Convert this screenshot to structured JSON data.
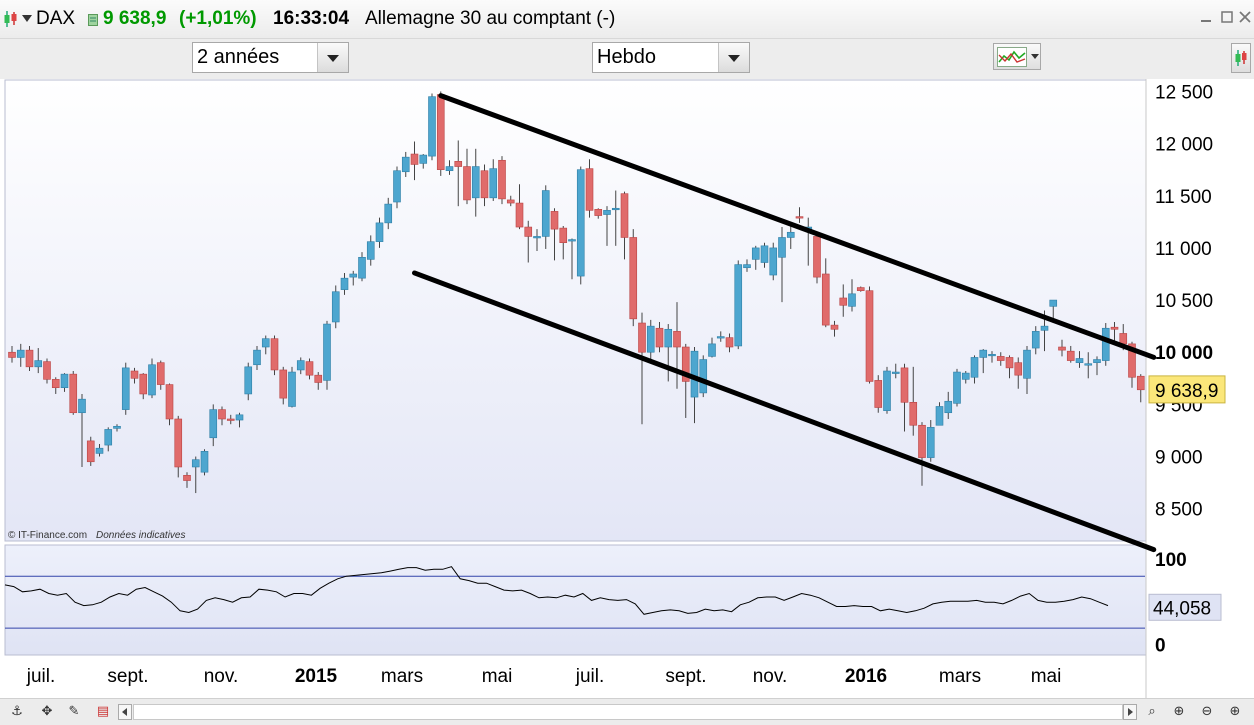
{
  "header": {
    "symbol": "DAX",
    "price": "9 638,9",
    "change": "(+1,01%)",
    "time": "16:33:04",
    "name": "Allemagne 30 au comptant (-)",
    "colors": {
      "up": "#009900",
      "text": "#000000"
    }
  },
  "toolbar": {
    "period": "2 années",
    "interval": "Hebdo"
  },
  "credits": {
    "source": "© IT-Finance.com",
    "note": "Données indicatives"
  },
  "chart_data": {
    "type": "candlestick",
    "x_labels": [
      "juil.",
      "sept.",
      "nov.",
      "2015",
      "mars",
      "mai",
      "juil.",
      "sept.",
      "nov.",
      "2016",
      "mars",
      "mai"
    ],
    "y_ticks": [
      "12 500",
      "12 000",
      "11 500",
      "11 000",
      "10 500",
      "10 000",
      "9 500",
      "9 000",
      "8 500"
    ],
    "ylim": [
      8200,
      12600
    ],
    "last_price_label": "9 638,9",
    "last_price": 9638.9,
    "colors": {
      "up": "#4da6cf",
      "down": "#e06b6b",
      "wick": "#444444"
    },
    "candles": [
      [
        10000,
        9950,
        9900,
        10060
      ],
      [
        9950,
        10020,
        9860,
        10080
      ],
      [
        10020,
        9860,
        9820,
        10060
      ],
      [
        9860,
        9920,
        9800,
        10040
      ],
      [
        9910,
        9740,
        9700,
        9940
      ],
      [
        9740,
        9660,
        9600,
        9760
      ],
      [
        9660,
        9790,
        9620,
        9800
      ],
      [
        9790,
        9420,
        9400,
        9820
      ],
      [
        9420,
        9550,
        8900,
        9600
      ],
      [
        9150,
        8950,
        8910,
        9190
      ],
      [
        9030,
        9080,
        9000,
        9120
      ],
      [
        9110,
        9260,
        9050,
        9280
      ],
      [
        9270,
        9290,
        9240,
        9310
      ],
      [
        9450,
        9850,
        9400,
        9900
      ],
      [
        9820,
        9750,
        9700,
        9850
      ],
      [
        9790,
        9600,
        9550,
        9800
      ],
      [
        9590,
        9880,
        9560,
        9940
      ],
      [
        9900,
        9690,
        9640,
        9920
      ],
      [
        9690,
        9360,
        9300,
        9700
      ],
      [
        9360,
        8900,
        8800,
        9390
      ],
      [
        8820,
        8770,
        8700,
        8850
      ],
      [
        8900,
        8970,
        8650,
        9000
      ],
      [
        8850,
        9050,
        8820,
        9070
      ],
      [
        9180,
        9450,
        9100,
        9500
      ],
      [
        9450,
        9360,
        9300,
        9480
      ],
      [
        9360,
        9350,
        9310,
        9400
      ],
      [
        9350,
        9400,
        9280,
        9420
      ],
      [
        9600,
        9860,
        9540,
        9900
      ],
      [
        9880,
        10020,
        9830,
        10060
      ],
      [
        10050,
        10130,
        9980,
        10160
      ],
      [
        10130,
        9830,
        9780,
        10160
      ],
      [
        9830,
        9560,
        9500,
        9860
      ],
      [
        9480,
        9810,
        9470,
        9860
      ],
      [
        9830,
        9920,
        9790,
        9950
      ],
      [
        9910,
        9780,
        9740,
        9940
      ],
      [
        9780,
        9710,
        9640,
        9810
      ],
      [
        9730,
        10270,
        9640,
        10300
      ],
      [
        10290,
        10580,
        10230,
        10640
      ],
      [
        10600,
        10710,
        10550,
        10760
      ],
      [
        10720,
        10750,
        10640,
        10780
      ],
      [
        10710,
        10910,
        10680,
        10960
      ],
      [
        10890,
        11060,
        10830,
        11120
      ],
      [
        11060,
        11240,
        11000,
        11290
      ],
      [
        11240,
        11420,
        11180,
        11480
      ],
      [
        11440,
        11740,
        11380,
        11780
      ],
      [
        11730,
        11870,
        11680,
        11920
      ],
      [
        11900,
        11800,
        11650,
        12020
      ],
      [
        11810,
        11890,
        11760,
        11900
      ],
      [
        11880,
        12450,
        11840,
        12480
      ],
      [
        12470,
        11750,
        11690,
        12500
      ],
      [
        11740,
        11780,
        11700,
        11840
      ],
      [
        11830,
        11780,
        11400,
        12030
      ],
      [
        11780,
        11460,
        11420,
        11950
      ],
      [
        11480,
        11780,
        11300,
        11950
      ],
      [
        11740,
        11480,
        11400,
        11800
      ],
      [
        11480,
        11760,
        11450,
        11850
      ],
      [
        11840,
        11470,
        11420,
        11880
      ],
      [
        11460,
        11430,
        11400,
        11500
      ],
      [
        11430,
        11200,
        11180,
        11610
      ],
      [
        11200,
        11110,
        10860,
        11260
      ],
      [
        11100,
        11110,
        10970,
        11180
      ],
      [
        11110,
        11550,
        10990,
        11600
      ],
      [
        11350,
        11180,
        10880,
        11380
      ],
      [
        11190,
        11050,
        10890,
        11210
      ],
      [
        11080,
        11080,
        10700,
        11090
      ],
      [
        10730,
        11750,
        10650,
        11780
      ],
      [
        11760,
        11360,
        11290,
        11850
      ],
      [
        11370,
        11310,
        11280,
        11380
      ],
      [
        11320,
        11360,
        11020,
        11400
      ],
      [
        11370,
        11380,
        11020,
        11550
      ],
      [
        11520,
        11100,
        10890,
        11540
      ],
      [
        11100,
        10320,
        10250,
        11180
      ],
      [
        10280,
        10000,
        9310,
        10380
      ],
      [
        10000,
        10250,
        9900,
        10310
      ],
      [
        10230,
        10050,
        10000,
        10290
      ],
      [
        10050,
        10220,
        9720,
        10270
      ],
      [
        10200,
        10050,
        9650,
        10480
      ],
      [
        10050,
        9720,
        9370,
        10080
      ],
      [
        9570,
        10010,
        9320,
        10050
      ],
      [
        9610,
        9930,
        9570,
        9970
      ],
      [
        9960,
        10080,
        9950,
        10140
      ],
      [
        10140,
        10150,
        10100,
        10200
      ],
      [
        10140,
        10050,
        10000,
        10180
      ],
      [
        10060,
        10840,
        10030,
        10880
      ],
      [
        10810,
        10840,
        10770,
        10890
      ],
      [
        10890,
        11000,
        10790,
        11020
      ],
      [
        10860,
        11020,
        10810,
        11050
      ],
      [
        10740,
        11000,
        10690,
        11050
      ],
      [
        10910,
        11100,
        10480,
        11200
      ],
      [
        11100,
        11150,
        10990,
        11250
      ],
      [
        11300,
        11290,
        11240,
        11390
      ],
      [
        11180,
        11200,
        10830,
        11290
      ],
      [
        11110,
        10720,
        10660,
        11150
      ],
      [
        10750,
        10260,
        10240,
        10900
      ],
      [
        10260,
        10220,
        10150,
        10300
      ],
      [
        10520,
        10450,
        10340,
        10650
      ],
      [
        10440,
        10560,
        10390,
        10700
      ],
      [
        10620,
        10590,
        10580,
        10630
      ],
      [
        10590,
        9720,
        9700,
        10630
      ],
      [
        9730,
        9470,
        9420,
        9780
      ],
      [
        9440,
        9820,
        9410,
        9860
      ],
      [
        9810,
        9810,
        9750,
        9890
      ],
      [
        9850,
        9520,
        9240,
        9890
      ],
      [
        9520,
        9300,
        9200,
        9860
      ],
      [
        9300,
        8990,
        8720,
        9330
      ],
      [
        8990,
        9280,
        8950,
        9350
      ],
      [
        9300,
        9480,
        9300,
        9520
      ],
      [
        9420,
        9530,
        9360,
        9620
      ],
      [
        9510,
        9810,
        9480,
        9840
      ],
      [
        9740,
        9800,
        9700,
        9820
      ],
      [
        9760,
        9950,
        9700,
        9970
      ],
      [
        9950,
        10020,
        9800,
        10030
      ],
      [
        9980,
        9980,
        9900,
        10010
      ],
      [
        9960,
        9920,
        9870,
        10000
      ],
      [
        9950,
        9850,
        9750,
        9970
      ],
      [
        9900,
        9780,
        9650,
        9950
      ],
      [
        9750,
        10020,
        9600,
        10060
      ],
      [
        10040,
        10200,
        9980,
        10250
      ],
      [
        10210,
        10250,
        10010,
        10400
      ],
      [
        10440,
        10500,
        10280,
        10480
      ],
      [
        10050,
        10020,
        9960,
        10120
      ],
      [
        10010,
        9920,
        9900,
        10060
      ],
      [
        9900,
        9940,
        9850,
        10010
      ],
      [
        9890,
        9890,
        9750,
        10000
      ],
      [
        9900,
        9930,
        9780,
        9960
      ],
      [
        9920,
        10230,
        9870,
        10280
      ],
      [
        10240,
        10220,
        10070,
        10290
      ],
      [
        10180,
        10080,
        10020,
        10270
      ],
      [
        10080,
        9760,
        9660,
        10100
      ],
      [
        9770,
        9640,
        9520,
        9790
      ]
    ],
    "channel_upper": [
      [
        49,
        12460
      ],
      [
        125,
        10120
      ]
    ],
    "channel_lower": [
      [
        46,
        10760
      ],
      [
        125,
        8280
      ]
    ],
    "oscillator": {
      "upper_label": "100",
      "current_label": "44,058",
      "lower_label": "0",
      "current": 44.058,
      "levels": [
        80,
        20
      ],
      "ylim": [
        -10,
        115
      ],
      "colors": {
        "line": "#000000",
        "level": "#3344aa"
      },
      "values": [
        70,
        68,
        62,
        63,
        65,
        60,
        58,
        60,
        50,
        46,
        47,
        50,
        56,
        60,
        58,
        65,
        67,
        62,
        57,
        50,
        40,
        38,
        42,
        52,
        55,
        53,
        50,
        55,
        56,
        65,
        64,
        62,
        56,
        60,
        60,
        58,
        66,
        72,
        77,
        80,
        81,
        82,
        83,
        84,
        86,
        88,
        90,
        90,
        87,
        88,
        88,
        91,
        77,
        75,
        72,
        72,
        68,
        64,
        63,
        64,
        60,
        55,
        56,
        55,
        58,
        56,
        60,
        52,
        55,
        53,
        52,
        53,
        48,
        36,
        38,
        40,
        41,
        40,
        37,
        38,
        42,
        40,
        41,
        39,
        47,
        50,
        55,
        56,
        56,
        52,
        56,
        60,
        58,
        55,
        50,
        45,
        45,
        46,
        45,
        45,
        40,
        42,
        40,
        38,
        40,
        43,
        48,
        50,
        51,
        51,
        51,
        52,
        50,
        50,
        48,
        52,
        57,
        60,
        52,
        50,
        50,
        51,
        53,
        56,
        54,
        50,
        46
      ]
    }
  }
}
